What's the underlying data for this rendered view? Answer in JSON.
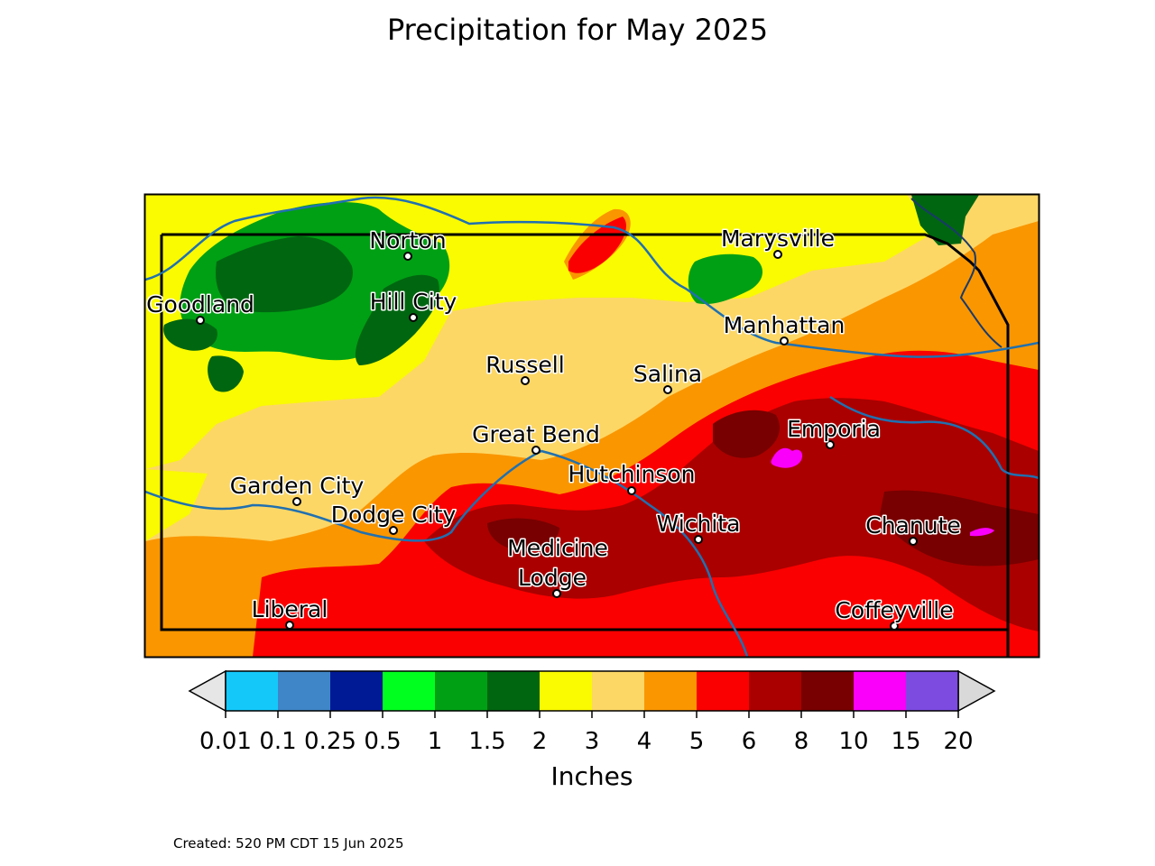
{
  "title": "Precipitation for May 2025",
  "map": {
    "cities": [
      {
        "name": "Goodland"
      },
      {
        "name": "Norton"
      },
      {
        "name": "Hill City"
      },
      {
        "name": "Marysville"
      },
      {
        "name": "Manhattan"
      },
      {
        "name": "Russell"
      },
      {
        "name": "Salina"
      },
      {
        "name": "Great Bend"
      },
      {
        "name": "Emporia"
      },
      {
        "name": "Hutchinson"
      },
      {
        "name": "Garden City"
      },
      {
        "name": "Dodge City"
      },
      {
        "name": "Wichita"
      },
      {
        "name": "Chanute"
      },
      {
        "name": "Medicine Lodge"
      },
      {
        "name": "Liberal"
      },
      {
        "name": "Coffeyville"
      }
    ]
  },
  "legend": {
    "unit": "Inches",
    "ticks": [
      "0.01",
      "0.1",
      "0.25",
      "0.5",
      "1",
      "1.5",
      "2",
      "3",
      "4",
      "5",
      "6",
      "8",
      "10",
      "15",
      "20"
    ],
    "bin_colors": [
      "#14c8fa",
      "#3f86c8",
      "#001a96",
      "#00ff1f",
      "#00a014",
      "#006610",
      "#fafa00",
      "#fcd766",
      "#fa9600",
      "#fa0000",
      "#aa0000",
      "#780000",
      "#fa00fa",
      "#7d4be0"
    ],
    "under_color": "#e6e6e6",
    "over_color": "#d9d9d9"
  },
  "created_note": "Created: 520 PM CDT 15 Jun 2025"
}
